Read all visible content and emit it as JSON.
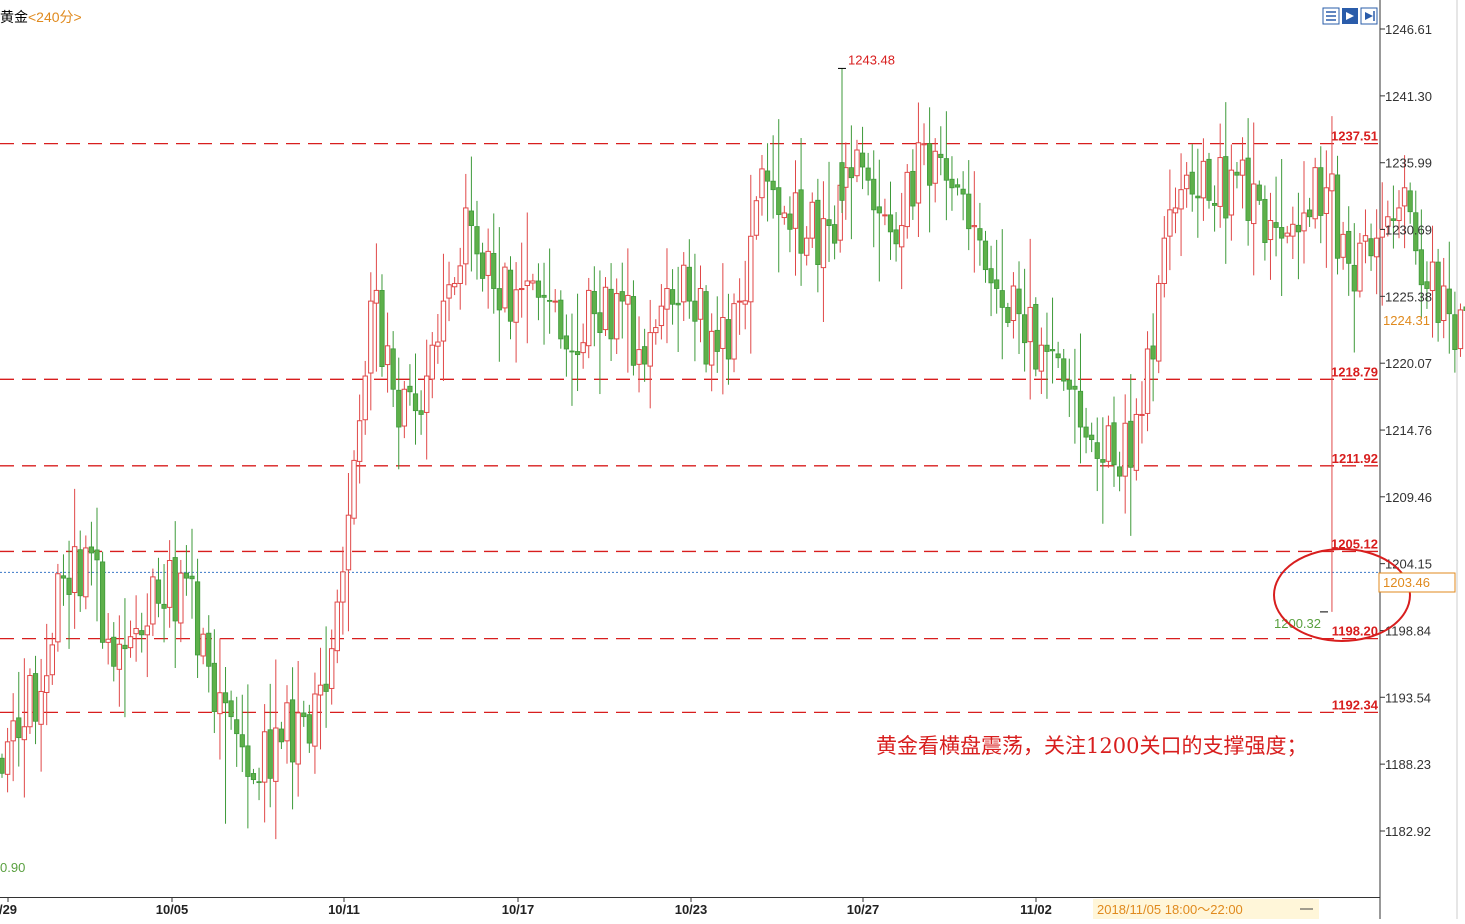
{
  "header": {
    "symbol": "黄金",
    "period": "<240分>",
    "left_edge_value": "0.90"
  },
  "annotation": "黄金看横盘震荡，关注1200关口的支撑强度；",
  "time_readout": "2018/11/05 18:00～22:00",
  "price_badge_top": "1224.31",
  "price_badge_current": "1203.46",
  "chart_data": {
    "type": "candlestick",
    "y_range": [
      1178,
      1248
    ],
    "y_ticks": [
      "1246.61",
      "1241.30",
      "1235.99",
      "1230.69",
      "1225.38",
      "1220.07",
      "1214.76",
      "1209.46",
      "1204.15",
      "1198.84",
      "1193.54",
      "1188.23",
      "1182.92"
    ],
    "x_ticks": [
      "/29",
      "10/05",
      "10/11",
      "10/17",
      "10/23",
      "10/27",
      "11/02"
    ],
    "levels": [
      {
        "label": "1237.51",
        "value": 1237.51
      },
      {
        "label": "1218.79",
        "value": 1218.79
      },
      {
        "label": "1211.92",
        "value": 1211.92
      },
      {
        "label": "1205.12",
        "value": 1205.12
      },
      {
        "label": "1198.20",
        "value": 1198.2
      },
      {
        "label": "1192.34",
        "value": 1192.34
      }
    ],
    "current_price": 1203.46,
    "high_label": "1243.48",
    "high_value": 1243.48,
    "low_label": "1200.32",
    "low_value": 1200.32,
    "anchors": [
      1187.5,
      1190,
      1194,
      1203,
      1205,
      1196,
      1199,
      1201,
      1203,
      1196,
      1192,
      1187,
      1190,
      1192,
      1194,
      1208,
      1225,
      1218,
      1216,
      1225,
      1231,
      1226,
      1226,
      1225,
      1221,
      1224,
      1225,
      1220,
      1226,
      1225,
      1221,
      1225,
      1235.5,
      1232,
      1230,
      1231,
      1237,
      1232,
      1231,
      1237.5,
      1234,
      1231,
      1226,
      1224,
      1221,
      1218,
      1214,
      1212,
      1216,
      1230,
      1235,
      1233,
      1235,
      1233,
      1230,
      1232,
      1234,
      1228,
      1230,
      1234,
      1226,
      1224,
      1223,
      1221,
      1222,
      1217,
      1212,
      1208,
      1208,
      1202,
      1203.5
    ],
    "counts": [
      1,
      6,
      4,
      5,
      4,
      4,
      4,
      5,
      4,
      4,
      4,
      5,
      4,
      4,
      4,
      4,
      4,
      5,
      4,
      5,
      4,
      5,
      5,
      4,
      4,
      5,
      4,
      4,
      4,
      5,
      4,
      4,
      4,
      4,
      4,
      5,
      4,
      4,
      4,
      5,
      4,
      4,
      4,
      5,
      4,
      4,
      4,
      5,
      4,
      4,
      4,
      5,
      4,
      4,
      4,
      4,
      4,
      5,
      5,
      4,
      4,
      4,
      4,
      5,
      4,
      4,
      4,
      4,
      5,
      3
    ],
    "forced_lows": [
      {
        "index": 40,
        "value": 1183.5
      },
      {
        "index": 238,
        "value": 1200.32
      }
    ]
  }
}
